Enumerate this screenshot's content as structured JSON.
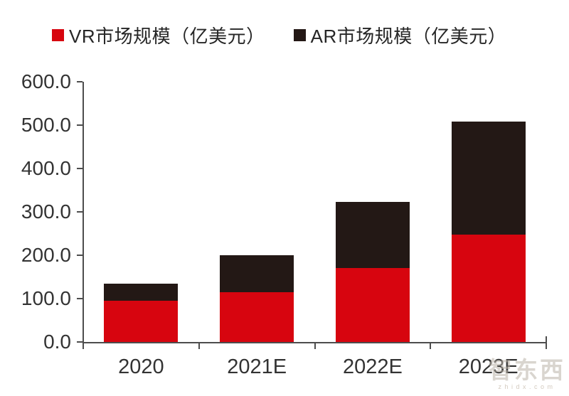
{
  "legend": {
    "position": "top",
    "items": [
      {
        "label": "VR市场规模（亿美元）",
        "color": "#d7050f"
      },
      {
        "label": "AR市场规模（亿美元）",
        "color": "#231815"
      }
    ]
  },
  "colors": {
    "vr_bar": "#d7050f",
    "ar_bar": "#231815",
    "axis": "#4d4d4d",
    "tick_text": "#333333",
    "legend_text": "#262626",
    "watermark": "#c4b8aa"
  },
  "chart_data": {
    "type": "bar",
    "stacked": true,
    "title": "",
    "xlabel": "",
    "ylabel": "",
    "categories": [
      "2020",
      "2021E",
      "2022E",
      "2023E"
    ],
    "series": [
      {
        "name": "VR市场规模（亿美元）",
        "color": "#d7050f",
        "values": [
          95,
          115,
          170,
          248
        ]
      },
      {
        "name": "AR市场规模（亿美元）",
        "color": "#231815",
        "values": [
          40,
          85,
          153,
          260
        ]
      }
    ],
    "totals": [
      135,
      200,
      323,
      508
    ],
    "ylim": [
      0,
      600
    ],
    "ytick_step": 100,
    "ytick_labels": [
      "0.0",
      "100.0",
      "200.0",
      "300.0",
      "400.0",
      "500.0",
      "600.0"
    ],
    "grid": false,
    "legend_position": "top"
  },
  "watermark": {
    "brand": "智东西",
    "domain": "zhidx.com"
  }
}
